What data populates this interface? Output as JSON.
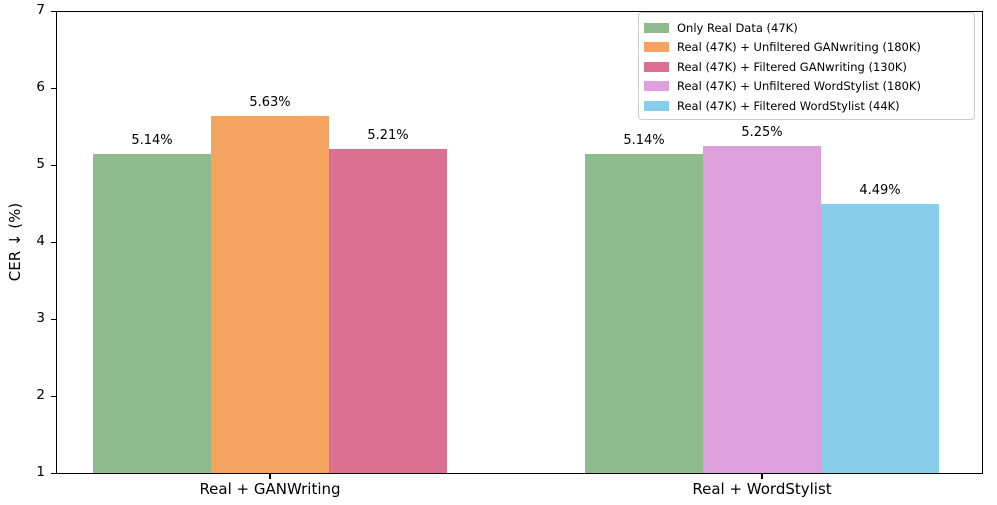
{
  "chart_data": {
    "type": "bar",
    "title": "",
    "xlabel": "",
    "ylabel": "CER ↓ (%)",
    "ylim": [
      1,
      7
    ],
    "yticks": [
      1,
      2,
      3,
      4,
      5,
      6,
      7
    ],
    "grid": false,
    "legend_position": "upper right",
    "categories": [
      "Real + GANWriting",
      "Real + WordStylist"
    ],
    "series": [
      {
        "name": "Only Real Data (47K)",
        "color": "#8FBC8F",
        "values": [
          5.14,
          5.14
        ],
        "labels": [
          "5.14%",
          "5.14%"
        ]
      },
      {
        "name": "Real (47K) + Unfiltered GANwriting (180K)",
        "color": "#F4A460",
        "values": [
          5.63,
          null
        ],
        "labels": [
          "5.63%",
          null
        ]
      },
      {
        "name": "Real (47K) + Filtered GANwriting (130K)",
        "color": "#DB7093",
        "values": [
          5.21,
          null
        ],
        "labels": [
          "5.21%",
          null
        ]
      },
      {
        "name": "Real (47K) + Unfiltered WordStylist (180K)",
        "color": "#DDA0DD",
        "values": [
          null,
          5.25
        ],
        "labels": [
          null,
          "5.25%"
        ]
      },
      {
        "name": "Real (47K) + Filtered WordStylist (44K)",
        "color": "#87CEEB",
        "values": [
          null,
          4.49
        ],
        "labels": [
          null,
          "4.49%"
        ]
      }
    ]
  }
}
